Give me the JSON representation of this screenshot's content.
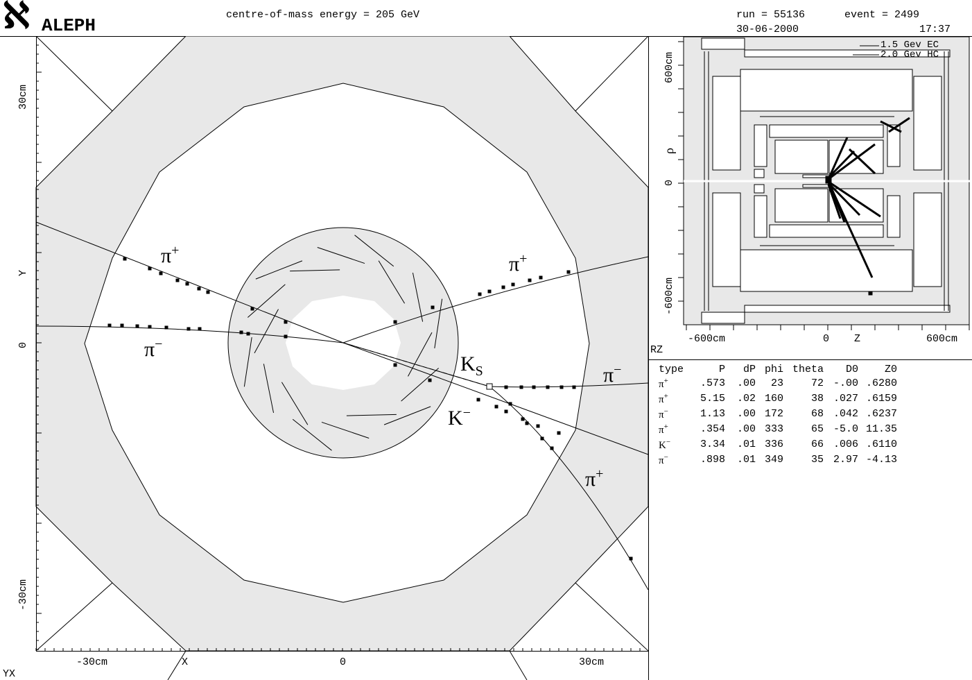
{
  "header": {
    "logo_glyph": "ℵ",
    "logo_text": "ALEPH",
    "energy": "centre-of-mass energy = 205 GeV",
    "run": "run = 55136",
    "event": "event = 2499",
    "date": "30-06-2000",
    "time": "17:37"
  },
  "yx_view": {
    "view_label": "YX",
    "axis_x_label": "X",
    "axis_y_label": "Y",
    "x_ticks": [
      "-30cm",
      "0",
      "30cm"
    ],
    "y_ticks": [
      "30cm",
      "0",
      "-30cm"
    ],
    "particle_labels": [
      {
        "base": "π",
        "sup": "+",
        "sub": ""
      },
      {
        "base": "π",
        "sup": "−",
        "sub": ""
      },
      {
        "base": "π",
        "sup": "+",
        "sub": ""
      },
      {
        "base": "K",
        "sup": "",
        "sub": "S"
      },
      {
        "base": "π",
        "sup": "−",
        "sub": ""
      },
      {
        "base": "K",
        "sup": "−",
        "sub": ""
      },
      {
        "base": "π",
        "sup": "+",
        "sub": ""
      }
    ]
  },
  "rz_view": {
    "view_label": "RZ",
    "axis_z_label": "Z",
    "axis_r_label": "ρ",
    "z_ticks": [
      "-600cm",
      "0",
      "600cm"
    ],
    "r_ticks": [
      "600cm",
      "0",
      "-600cm"
    ],
    "scale_ec": "1.5 Gev EC",
    "scale_hc": "2.0 Gev HC"
  },
  "particle_table": {
    "columns": [
      "type",
      "P",
      "dP",
      "phi",
      "theta",
      "D0",
      "Z0"
    ],
    "rows": [
      {
        "type": "π",
        "charge": "+",
        "P": ".573",
        "dP": ".00",
        "phi": "23",
        "theta": "72",
        "D0": "-.00",
        "Z0": ".6280"
      },
      {
        "type": "π",
        "charge": "+",
        "P": "5.15",
        "dP": ".02",
        "phi": "160",
        "theta": "38",
        "D0": ".027",
        "Z0": ".6159"
      },
      {
        "type": "π",
        "charge": "−",
        "P": "1.13",
        "dP": ".00",
        "phi": "172",
        "theta": "68",
        "D0": ".042",
        "Z0": ".6237"
      },
      {
        "type": "π",
        "charge": "+",
        "P": ".354",
        "dP": ".00",
        "phi": "333",
        "theta": "65",
        "D0": "-5.0",
        "Z0": "11.35"
      },
      {
        "type": "K",
        "charge": "−",
        "P": "3.34",
        "dP": ".01",
        "phi": "336",
        "theta": "66",
        "D0": ".006",
        "Z0": ".6110"
      },
      {
        "type": "π",
        "charge": "−",
        "P": ".898",
        "dP": ".01",
        "phi": "349",
        "theta": "35",
        "D0": "2.97",
        "Z0": "-4.13"
      }
    ]
  },
  "colors": {
    "shade": "#e8e8e8",
    "inner": "#f2f2f2",
    "ink": "#000000"
  }
}
